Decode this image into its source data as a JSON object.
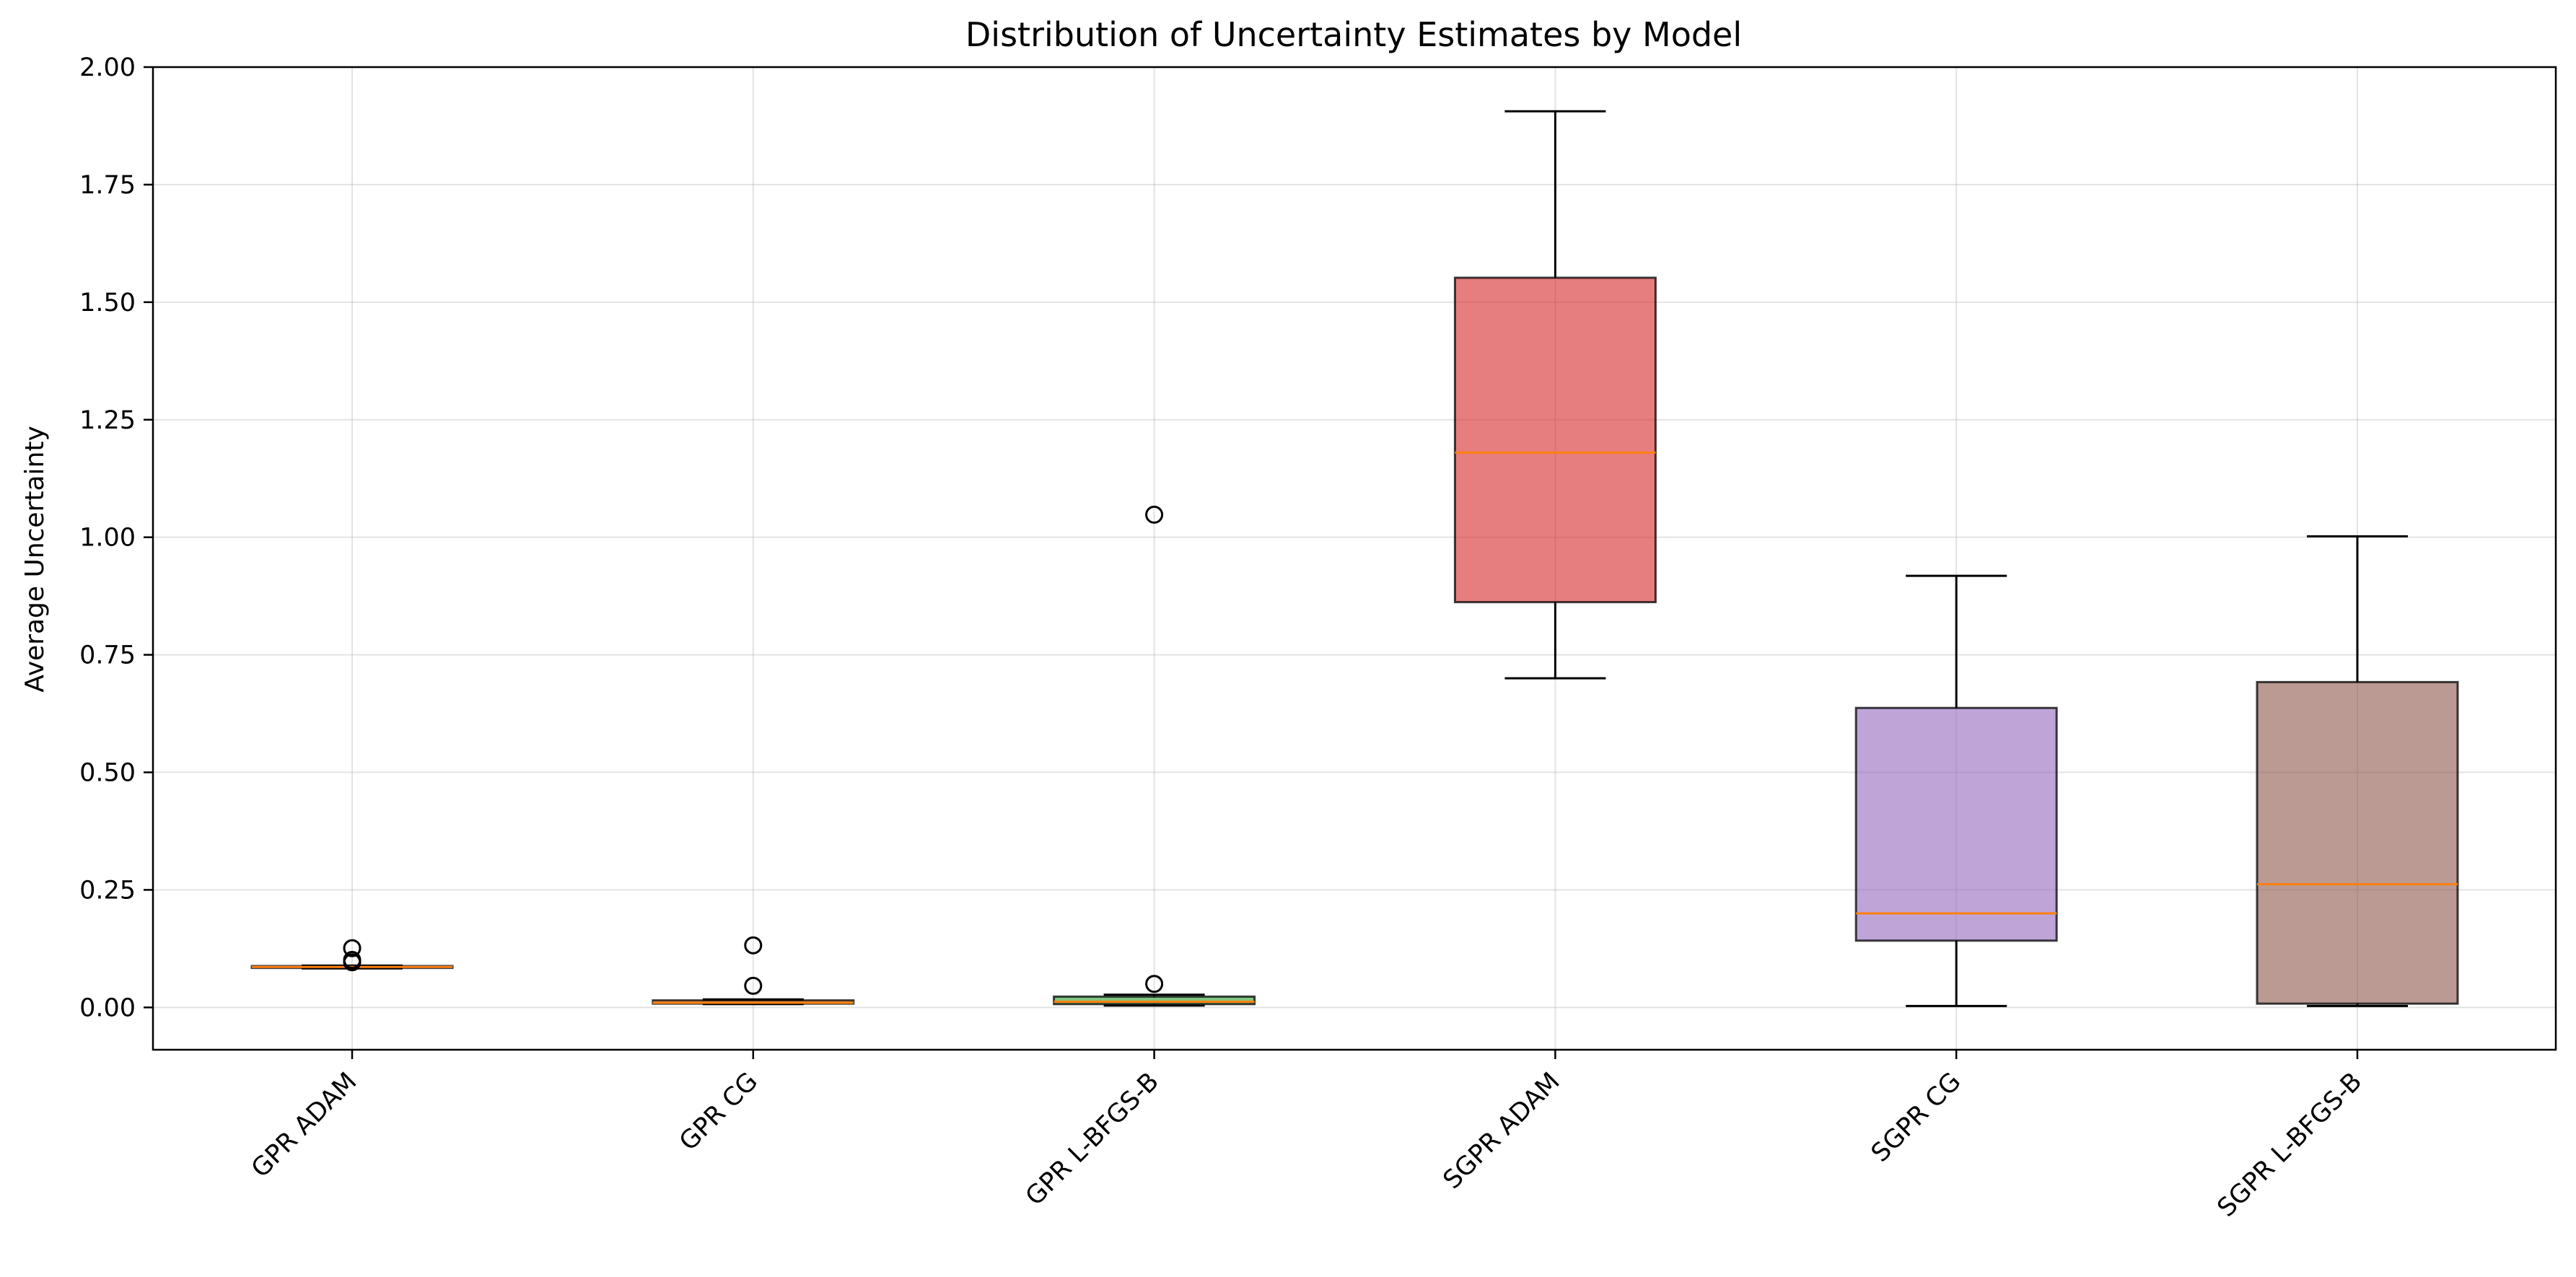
{
  "chart_data": {
    "type": "box",
    "title": "Distribution of Uncertainty Estimates by Model",
    "xlabel": "",
    "ylabel": "Average Uncertainty",
    "ylim": [
      -0.09,
      2.0
    ],
    "yticks": [
      "0.00",
      "0.25",
      "0.50",
      "0.75",
      "1.00",
      "1.25",
      "1.50",
      "1.75",
      "2.00"
    ],
    "grid": true,
    "categories": [
      "GPR ADAM",
      "GPR CG",
      "GPR L-BFGS-B",
      "SGPR ADAM",
      "SGPR CG",
      "SGPR L-BFGS-B"
    ],
    "boxes": [
      {
        "category": "GPR ADAM",
        "whisker_low": 0.083,
        "q1": 0.084,
        "median": 0.086,
        "q3": 0.088,
        "whisker_high": 0.089,
        "outliers": [
          0.096,
          0.101,
          0.126
        ],
        "color": "#1f77b4"
      },
      {
        "category": "GPR CG",
        "whisker_low": 0.007,
        "q1": 0.008,
        "median": 0.01,
        "q3": 0.015,
        "whisker_high": 0.017,
        "outliers": [
          0.046,
          0.132
        ],
        "color": "#ff7f0e"
      },
      {
        "category": "GPR L-BFGS-B",
        "whisker_low": 0.004,
        "q1": 0.007,
        "median": 0.012,
        "q3": 0.023,
        "whisker_high": 0.027,
        "outliers": [
          0.05,
          1.048
        ],
        "color": "#2ca02c"
      },
      {
        "category": "SGPR ADAM",
        "whisker_low": 0.7,
        "q1": 0.862,
        "median": 1.18,
        "q3": 1.552,
        "whisker_high": 1.906,
        "outliers": [],
        "color": "#d62728"
      },
      {
        "category": "SGPR CG",
        "whisker_low": 0.003,
        "q1": 0.142,
        "median": 0.2,
        "q3": 0.637,
        "whisker_high": 0.918,
        "outliers": [],
        "color": "#9467bd"
      },
      {
        "category": "SGPR L-BFGS-B",
        "whisker_low": 0.003,
        "q1": 0.008,
        "median": 0.262,
        "q3": 0.692,
        "whisker_high": 1.002,
        "outliers": [],
        "color": "#8c564b"
      }
    ],
    "median_color": "#ff7f0e",
    "box_alpha": 0.6
  }
}
